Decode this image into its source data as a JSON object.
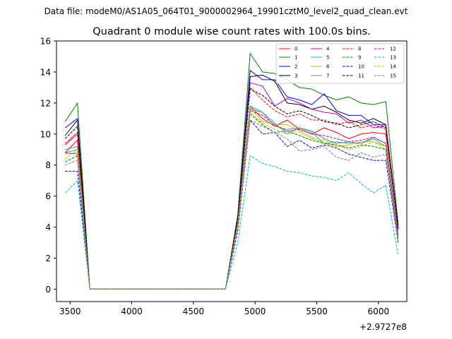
{
  "chart_data": {
    "type": "line",
    "suptitle": "Data file: modeM0/AS1A05_064T01_9000002964_19901cztM0_level2_quad_clean.evt",
    "title": "Quadrant 0 module wise count rates with 100.0s bins.",
    "xlabel": "",
    "ylabel": "",
    "x_offset_label": "+2.9727e8",
    "xlim": [
      3390,
      6230
    ],
    "ylim": [
      -0.8,
      16
    ],
    "xticks": [
      3500,
      4000,
      4500,
      5000,
      5500,
      6000
    ],
    "xtick_labels": [
      "3500",
      "4000",
      "4500",
      "5000",
      "5500",
      "6000"
    ],
    "yticks": [
      0,
      2,
      4,
      6,
      8,
      10,
      12,
      14,
      16
    ],
    "ytick_labels": [
      "0",
      "2",
      "4",
      "6",
      "8",
      "10",
      "12",
      "14",
      "16"
    ],
    "x": [
      3460,
      3560,
      3660,
      3760,
      3860,
      3960,
      4060,
      4160,
      4260,
      4360,
      4460,
      4560,
      4660,
      4760,
      4860,
      4960,
      5060,
      5160,
      5260,
      5360,
      5460,
      5560,
      5660,
      5760,
      5860,
      5960,
      6060,
      6160
    ],
    "legend_position": "top-right",
    "series": [
      {
        "name": "0",
        "color": "#ff0000",
        "dash": "solid",
        "values": [
          8.8,
          9.6,
          0,
          0,
          0,
          0,
          0,
          0,
          0,
          0,
          0,
          0,
          0,
          0,
          4.5,
          11.8,
          11.0,
          10.5,
          10.9,
          10.3,
          10.0,
          10.4,
          10.1,
          9.7,
          10.0,
          10.1,
          10.0,
          4.0
        ]
      },
      {
        "name": "1",
        "color": "#008000",
        "dash": "solid",
        "values": [
          10.8,
          12.0,
          0,
          0,
          0,
          0,
          0,
          0,
          0,
          0,
          0,
          0,
          0,
          0,
          4.8,
          15.2,
          14.0,
          13.9,
          13.5,
          13.0,
          12.9,
          12.5,
          12.2,
          12.4,
          12.0,
          11.9,
          12.1,
          4.2
        ]
      },
      {
        "name": "2",
        "color": "#0000ff",
        "dash": "solid",
        "values": [
          10.4,
          11.0,
          0,
          0,
          0,
          0,
          0,
          0,
          0,
          0,
          0,
          0,
          0,
          0,
          4.6,
          14.1,
          13.5,
          13.5,
          12.4,
          12.2,
          11.9,
          12.6,
          11.5,
          11.2,
          11.2,
          10.6,
          10.6,
          4.1
        ]
      },
      {
        "name": "3",
        "color": "#000000",
        "dash": "solid",
        "values": [
          9.9,
          10.9,
          0,
          0,
          0,
          0,
          0,
          0,
          0,
          0,
          0,
          0,
          0,
          0,
          4.6,
          13.7,
          13.8,
          13.4,
          12.0,
          11.9,
          11.6,
          11.8,
          11.4,
          10.9,
          10.7,
          11.0,
          10.6,
          4.0
        ]
      },
      {
        "name": "4",
        "color": "#bf00bf",
        "dash": "solid",
        "values": [
          9.3,
          10.0,
          0,
          0,
          0,
          0,
          0,
          0,
          0,
          0,
          0,
          0,
          0,
          0,
          4.5,
          13.3,
          13.1,
          11.8,
          12.3,
          12.0,
          11.6,
          11.4,
          11.3,
          10.7,
          10.9,
          10.4,
          10.5,
          3.9
        ]
      },
      {
        "name": "5",
        "color": "#00bfbf",
        "dash": "solid",
        "values": [
          8.8,
          9.0,
          0,
          0,
          0,
          0,
          0,
          0,
          0,
          0,
          0,
          0,
          0,
          0,
          4.3,
          11.8,
          11.4,
          10.7,
          10.0,
          10.4,
          10.1,
          9.4,
          9.5,
          9.4,
          9.4,
          9.7,
          9.2,
          3.4
        ]
      },
      {
        "name": "6",
        "color": "#bfbf00",
        "dash": "solid",
        "values": [
          8.7,
          8.8,
          0,
          0,
          0,
          0,
          0,
          0,
          0,
          0,
          0,
          0,
          0,
          0,
          4.3,
          11.7,
          10.8,
          10.6,
          10.6,
          10.2,
          9.8,
          9.4,
          9.2,
          9.3,
          9.5,
          9.5,
          9.2,
          3.3
        ]
      },
      {
        "name": "7",
        "color": "#808080",
        "dash": "solid",
        "values": [
          9.0,
          9.2,
          0,
          0,
          0,
          0,
          0,
          0,
          0,
          0,
          0,
          0,
          0,
          0,
          4.4,
          11.6,
          11.4,
          10.5,
          10.3,
          10.4,
          10.2,
          9.7,
          9.4,
          9.5,
          9.4,
          9.8,
          9.4,
          3.5
        ]
      },
      {
        "name": "8",
        "color": "#ff0000",
        "dash": "dashed",
        "values": [
          9.4,
          10.1,
          0,
          0,
          0,
          0,
          0,
          0,
          0,
          0,
          0,
          0,
          0,
          0,
          4.5,
          13.0,
          12.2,
          11.5,
          11.1,
          11.3,
          10.9,
          10.9,
          10.6,
          10.8,
          10.4,
          10.6,
          10.3,
          3.8
        ]
      },
      {
        "name": "9",
        "color": "#008000",
        "dash": "dashed",
        "values": [
          8.2,
          8.6,
          0,
          0,
          0,
          0,
          0,
          0,
          0,
          0,
          0,
          0,
          0,
          0,
          4.2,
          11.3,
          10.6,
          10.1,
          10.2,
          9.9,
          9.6,
          9.4,
          9.3,
          9.1,
          9.3,
          9.2,
          9.0,
          3.3
        ]
      },
      {
        "name": "10",
        "color": "#0000ff",
        "dash": "dashed",
        "values": [
          7.6,
          7.6,
          0,
          0,
          0,
          0,
          0,
          0,
          0,
          0,
          0,
          0,
          0,
          0,
          3.8,
          10.9,
          10.0,
          10.1,
          9.2,
          9.6,
          9.1,
          9.3,
          9.1,
          8.7,
          8.5,
          8.3,
          8.3,
          3.0
        ]
      },
      {
        "name": "11",
        "color": "#000000",
        "dash": "dashed",
        "values": [
          9.7,
          10.5,
          0,
          0,
          0,
          0,
          0,
          0,
          0,
          0,
          0,
          0,
          0,
          0,
          4.6,
          12.9,
          12.5,
          11.8,
          11.3,
          11.5,
          11.2,
          10.8,
          10.7,
          10.4,
          10.6,
          10.8,
          10.4,
          3.9
        ]
      },
      {
        "name": "12",
        "color": "#bf00bf",
        "dash": "dashed",
        "values": [
          8.8,
          8.7,
          0,
          0,
          0,
          0,
          0,
          0,
          0,
          0,
          0,
          0,
          0,
          0,
          4.3,
          11.5,
          11.2,
          10.6,
          10.2,
          10.3,
          10.0,
          9.9,
          9.7,
          9.5,
          9.6,
          9.8,
          9.4,
          3.5
        ]
      },
      {
        "name": "13",
        "color": "#00bfbf",
        "dash": "dashed",
        "values": [
          6.2,
          7.0,
          0,
          0,
          0,
          0,
          0,
          0,
          0,
          0,
          0,
          0,
          0,
          0,
          3.0,
          8.6,
          8.1,
          7.9,
          7.6,
          7.5,
          7.3,
          7.2,
          7.0,
          7.5,
          6.8,
          6.2,
          6.7,
          2.2
        ]
      },
      {
        "name": "14",
        "color": "#bfbf00",
        "dash": "dashed",
        "values": [
          8.4,
          9.0,
          0,
          0,
          0,
          0,
          0,
          0,
          0,
          0,
          0,
          0,
          0,
          0,
          4.2,
          11.4,
          10.7,
          10.3,
          10.0,
          10.1,
          9.7,
          9.6,
          9.3,
          9.0,
          9.2,
          9.5,
          9.0,
          3.2
        ]
      },
      {
        "name": "15",
        "color": "#808080",
        "dash": "dashed",
        "values": [
          8.0,
          8.3,
          0,
          0,
          0,
          0,
          0,
          0,
          0,
          0,
          0,
          0,
          0,
          0,
          4.0,
          10.9,
          10.5,
          10.1,
          9.7,
          8.9,
          9.0,
          9.2,
          8.5,
          8.3,
          8.8,
          8.5,
          8.7,
          3.1
        ]
      }
    ]
  }
}
